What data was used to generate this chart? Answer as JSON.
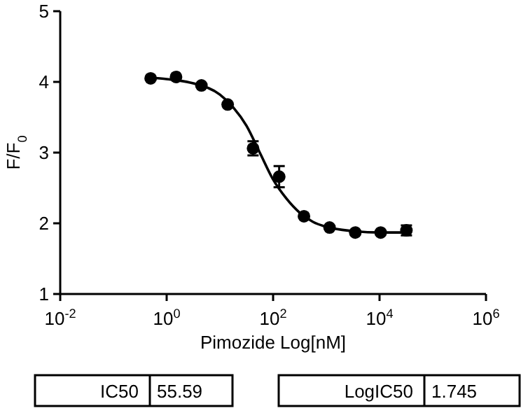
{
  "chart_data": {
    "type": "scatter",
    "xlabel": "Pimozide Log[nM]",
    "ylabel": "F/F$_{0}$",
    "log": "x",
    "grid": false,
    "xlim": [
      0.01,
      1000000
    ],
    "ylim": [
      1,
      5
    ],
    "xticks": [
      {
        "value": 0.01,
        "label": "10$^{-2}$"
      },
      {
        "value": 1,
        "label": "10$^{0}$"
      },
      {
        "value": 100,
        "label": "10$^{2}$"
      },
      {
        "value": 10000,
        "label": "10$^{4}$"
      },
      {
        "value": 1000000,
        "label": "10$^{6}$"
      }
    ],
    "yticks": [
      1,
      2,
      3,
      4,
      5
    ],
    "series": [
      {
        "marker": "circle",
        "color": "#000000",
        "x": [
          0.5,
          1.5,
          4.5,
          14,
          42,
          130,
          380,
          1150,
          3500,
          10500,
          32000
        ],
        "values": [
          4.05,
          4.07,
          3.95,
          3.68,
          3.06,
          2.66,
          2.1,
          1.94,
          1.87,
          1.87,
          1.9
        ],
        "errors": [
          null,
          null,
          null,
          null,
          0.1,
          0.15,
          null,
          null,
          null,
          null,
          0.07
        ]
      },
      {
        "type": "line",
        "marker": "none",
        "color": "#000000",
        "x": [
          0.5,
          1,
          3.16,
          10,
          17.8,
          31.6,
          56.2,
          100,
          178,
          316,
          562,
          1000,
          3160,
          10000,
          32000
        ],
        "values": [
          4.06,
          4.04,
          3.98,
          3.82,
          3.64,
          3.38,
          3.0,
          2.62,
          2.35,
          2.15,
          2.02,
          1.95,
          1.89,
          1.87,
          1.87
        ]
      }
    ],
    "annotations": [
      "IC50",
      "55.59",
      "LogIC50",
      "1.745"
    ]
  }
}
